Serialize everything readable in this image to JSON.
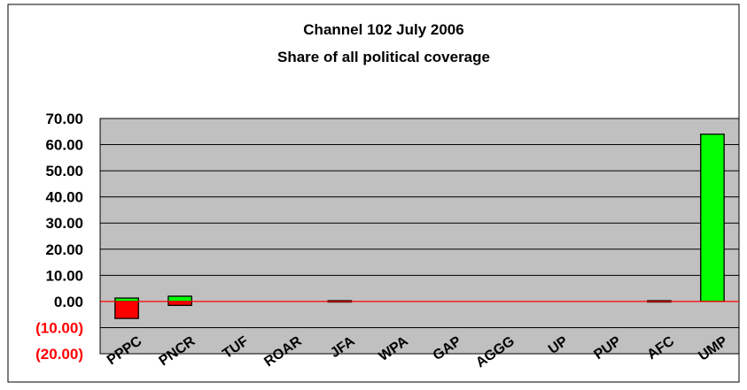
{
  "chart_data": {
    "type": "bar",
    "title": "Channel 102 July 2006",
    "subtitle": "Share of all political coverage",
    "xlabel": "",
    "ylabel": "",
    "ylim": [
      -20,
      70
    ],
    "yticks": [
      "70.00",
      "60.00",
      "50.00",
      "40.00",
      "30.00",
      "20.00",
      "10.00",
      "0.00",
      "(10.00)",
      "(20.00)"
    ],
    "grid": true,
    "categories": [
      "PPPC",
      "PNCR",
      "TUF",
      "ROAR",
      "JFA",
      "WPA",
      "GAP",
      "AGGG",
      "UP",
      "PUP",
      "AFC",
      "UMP"
    ],
    "series": [
      {
        "color": "#ff0000",
        "values": [
          -6.5,
          -1.5,
          0,
          0,
          0.3,
          0,
          0,
          0,
          0,
          0,
          0.3,
          0
        ]
      },
      {
        "color": "#00ff00",
        "values": [
          1.3,
          2.0,
          0,
          0,
          0,
          0,
          0,
          0,
          0,
          0,
          0,
          64.0
        ]
      }
    ],
    "colors": {
      "plot_background": "#c0c0c0",
      "negative_axis_labels": "#ff0000",
      "zero_line": "#ff0000",
      "bar_outline": "#000000"
    }
  }
}
